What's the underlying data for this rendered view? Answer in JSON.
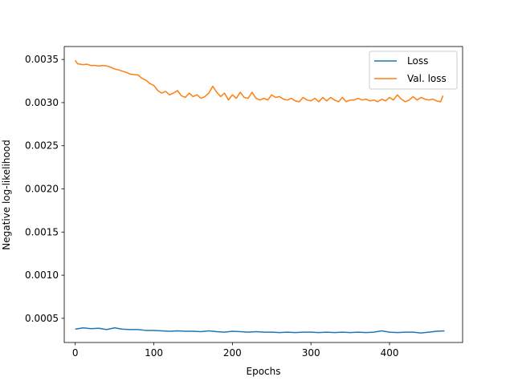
{
  "chart_data": {
    "type": "line",
    "xlabel": "Epochs",
    "ylabel": "Negative log-likelihood",
    "xlim": [
      -14,
      493
    ],
    "ylim": [
      0.00022,
      0.00365
    ],
    "xticks": [
      0,
      100,
      200,
      300,
      400
    ],
    "xtick_labels": [
      "0",
      "100",
      "200",
      "300",
      "400"
    ],
    "yticks": [
      0.0005,
      0.001,
      0.0015,
      0.002,
      0.0025,
      0.003,
      0.0035
    ],
    "ytick_labels": [
      "0.0005",
      "0.0010",
      "0.0015",
      "0.0020",
      "0.0025",
      "0.0030",
      "0.0035"
    ],
    "grid": false,
    "legend_position": "top-right",
    "series": [
      {
        "name": "Loss",
        "color": "#1f77b4",
        "x": [
          0,
          10,
          20,
          30,
          40,
          50,
          60,
          70,
          80,
          90,
          100,
          110,
          120,
          130,
          140,
          150,
          160,
          170,
          180,
          190,
          200,
          210,
          220,
          230,
          240,
          250,
          260,
          270,
          280,
          290,
          300,
          310,
          320,
          330,
          340,
          350,
          360,
          370,
          380,
          390,
          400,
          410,
          420,
          430,
          440,
          450,
          460,
          470
        ],
        "y": [
          0.000375,
          0.00039,
          0.00038,
          0.000385,
          0.00037,
          0.00039,
          0.000375,
          0.00037,
          0.00037,
          0.00036,
          0.00036,
          0.000355,
          0.00035,
          0.000355,
          0.00035,
          0.00035,
          0.000345,
          0.000355,
          0.000345,
          0.00034,
          0.00035,
          0.000345,
          0.00034,
          0.000345,
          0.00034,
          0.00034,
          0.000335,
          0.00034,
          0.000335,
          0.00034,
          0.00034,
          0.000335,
          0.00034,
          0.000335,
          0.00034,
          0.000335,
          0.00034,
          0.000335,
          0.00034,
          0.000355,
          0.00034,
          0.000335,
          0.00034,
          0.00034,
          0.00033,
          0.00034,
          0.00035,
          0.000355
        ]
      },
      {
        "name": "Val. loss",
        "color": "#ff7f0e",
        "x": [
          0,
          3,
          6,
          10,
          15,
          20,
          25,
          30,
          35,
          40,
          45,
          50,
          55,
          60,
          65,
          70,
          75,
          80,
          85,
          90,
          95,
          100,
          105,
          110,
          115,
          120,
          125,
          130,
          135,
          140,
          145,
          150,
          155,
          160,
          165,
          170,
          175,
          180,
          185,
          190,
          195,
          200,
          205,
          210,
          215,
          220,
          225,
          230,
          235,
          240,
          245,
          250,
          255,
          260,
          265,
          270,
          275,
          280,
          285,
          290,
          295,
          300,
          305,
          310,
          315,
          320,
          325,
          330,
          335,
          340,
          345,
          350,
          355,
          360,
          365,
          370,
          375,
          380,
          385,
          390,
          395,
          400,
          405,
          410,
          415,
          420,
          425,
          430,
          435,
          440,
          445,
          450,
          455,
          460,
          465,
          468
        ],
        "y": [
          0.00349,
          0.00345,
          0.003445,
          0.00344,
          0.003445,
          0.00343,
          0.00343,
          0.003425,
          0.00343,
          0.003425,
          0.00341,
          0.00339,
          0.00338,
          0.003365,
          0.00335,
          0.00333,
          0.003325,
          0.00332,
          0.00328,
          0.00326,
          0.00322,
          0.0032,
          0.00314,
          0.00311,
          0.00313,
          0.00309,
          0.00311,
          0.00314,
          0.00308,
          0.00306,
          0.00311,
          0.00307,
          0.00309,
          0.00305,
          0.00307,
          0.00311,
          0.00319,
          0.00312,
          0.00307,
          0.00311,
          0.00303,
          0.00309,
          0.00305,
          0.00312,
          0.00306,
          0.00305,
          0.00312,
          0.00305,
          0.00303,
          0.00305,
          0.00303,
          0.00309,
          0.00306,
          0.00307,
          0.00304,
          0.00303,
          0.00305,
          0.00302,
          0.00301,
          0.00306,
          0.00303,
          0.00302,
          0.00305,
          0.00301,
          0.00306,
          0.00302,
          0.00306,
          0.00303,
          0.00301,
          0.00306,
          0.00301,
          0.00303,
          0.00303,
          0.00305,
          0.00303,
          0.00304,
          0.00302,
          0.00303,
          0.00301,
          0.00304,
          0.00302,
          0.00306,
          0.00303,
          0.00309,
          0.00304,
          0.00301,
          0.00303,
          0.00307,
          0.00303,
          0.00306,
          0.00304,
          0.00303,
          0.00304,
          0.00302,
          0.00301,
          0.00308
        ]
      }
    ]
  }
}
